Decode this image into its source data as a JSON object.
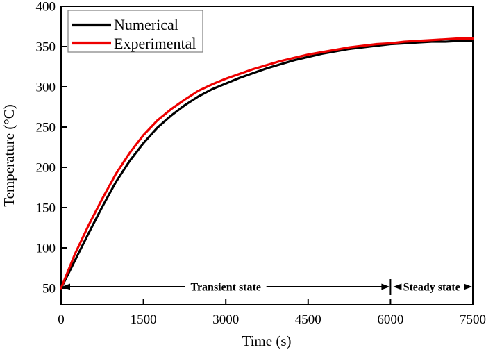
{
  "figure": {
    "background": "#ffffff"
  },
  "chart_data": {
    "type": "line",
    "title": "",
    "xlabel": "Time (s)",
    "ylabel": "Temperature (°C)",
    "xlim": [
      0,
      7500
    ],
    "ylim": [
      29,
      400
    ],
    "x_ticks": [
      "0",
      "1500",
      "3000",
      "4500",
      "6000",
      "7500"
    ],
    "x_tick_values": [
      0,
      1500,
      3000,
      4500,
      6000,
      7500
    ],
    "y_ticks": [
      "50",
      "100",
      "150",
      "200",
      "250",
      "300",
      "350",
      "400"
    ],
    "y_tick_values": [
      50,
      100,
      150,
      200,
      250,
      300,
      350,
      400
    ],
    "grid": false,
    "legend_position": "top-left",
    "x": [
      0,
      250,
      500,
      750,
      1000,
      1250,
      1500,
      1750,
      2000,
      2250,
      2500,
      2750,
      3000,
      3250,
      3500,
      3750,
      4000,
      4250,
      4500,
      4750,
      5000,
      5250,
      5500,
      5750,
      6000,
      6250,
      6500,
      6750,
      7000,
      7250,
      7500
    ],
    "series": [
      {
        "name": "Numerical",
        "color": "#000000",
        "values": [
          50,
          84,
          118,
          151,
          182,
          208,
          230,
          249,
          264,
          277,
          288,
          297,
          304,
          311,
          317,
          323,
          328,
          333,
          337,
          341,
          344,
          347,
          349,
          351,
          353,
          354,
          355,
          356,
          356,
          357,
          357
        ]
      },
      {
        "name": "Experimental",
        "color": "#ee0000",
        "values": [
          50,
          92,
          128,
          161,
          192,
          218,
          240,
          258,
          272,
          284,
          295,
          303,
          310,
          316,
          322,
          327,
          332,
          336,
          340,
          343,
          346,
          349,
          351,
          353,
          354,
          356,
          357,
          358,
          359,
          360,
          360
        ]
      }
    ],
    "annotations": [
      {
        "label": "Transient state",
        "x_start": 0,
        "x_end": 6000
      },
      {
        "label": "Steady state",
        "x_start": 6000,
        "x_end": 7500
      }
    ],
    "annotation_y": 50
  }
}
